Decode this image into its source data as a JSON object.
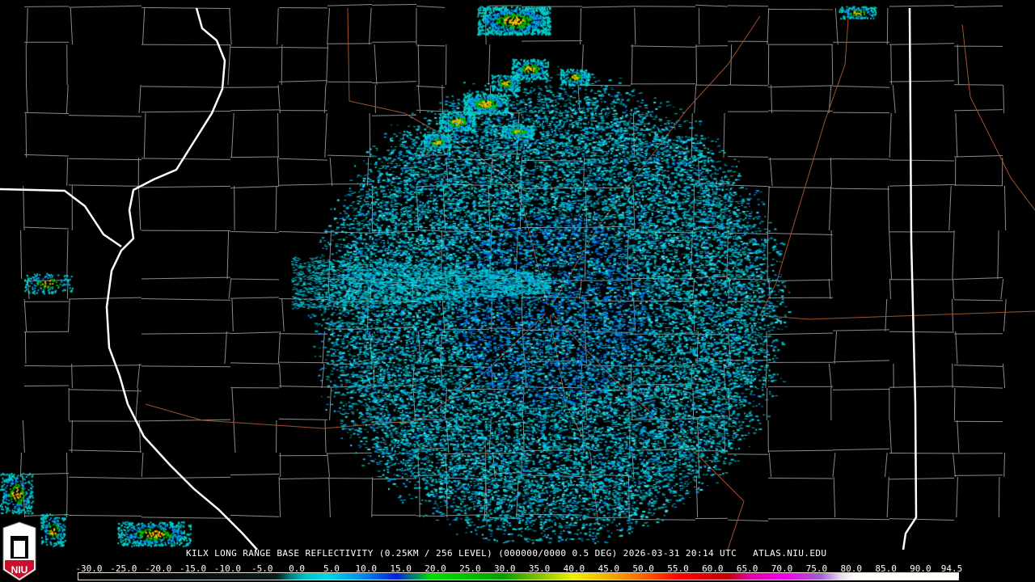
{
  "product": {
    "station": "KILX",
    "title": "LONG RANGE BASE REFLECTIVITY",
    "resolution": "(0.25KM / 256 LEVEL)",
    "scan": "(000000/0000 0.5 DEG)",
    "date": "2026-03-31",
    "time": "20:14 UTC",
    "source": "ATLAS.NIU.EDU"
  },
  "logo": {
    "text": "NIU",
    "colors": {
      "red": "#c8102e",
      "white": "#ffffff"
    }
  },
  "legend": {
    "unit_labels": [
      "-30.0",
      "-25.0",
      "-20.0",
      "-15.0",
      "-10.0",
      "-5.0",
      "0.0",
      "5.0",
      "10.0",
      "15.0",
      "20.0",
      "25.0",
      "30.0",
      "35.0",
      "40.0",
      "45.0",
      "50.0",
      "55.0",
      "60.0",
      "65.0",
      "70.0",
      "75.0",
      "80.0",
      "85.0",
      "90.0",
      "94.5"
    ],
    "range": [
      -30,
      94.5
    ],
    "color_stops": [
      {
        "value": -30,
        "color": "#000000"
      },
      {
        "value": -2,
        "color": "#0a1a1a"
      },
      {
        "value": 0,
        "color": "#008080"
      },
      {
        "value": 2,
        "color": "#00c0c0"
      },
      {
        "value": 5,
        "color": "#00d8e8"
      },
      {
        "value": 10,
        "color": "#0090f0"
      },
      {
        "value": 15,
        "color": "#0020e0"
      },
      {
        "value": 17,
        "color": "#007080"
      },
      {
        "value": 20,
        "color": "#00e000"
      },
      {
        "value": 30,
        "color": "#00a000"
      },
      {
        "value": 35,
        "color": "#80c000"
      },
      {
        "value": 40,
        "color": "#f0f000"
      },
      {
        "value": 45,
        "color": "#f0b000"
      },
      {
        "value": 50,
        "color": "#ff6000"
      },
      {
        "value": 55,
        "color": "#ff0000"
      },
      {
        "value": 62,
        "color": "#c00000"
      },
      {
        "value": 65,
        "color": "#e000a0"
      },
      {
        "value": 70,
        "color": "#f000f0"
      },
      {
        "value": 75,
        "color": "#a060d0"
      },
      {
        "value": 78,
        "color": "#e8e0f0"
      },
      {
        "value": 80,
        "color": "#ffffff"
      },
      {
        "value": 94.5,
        "color": "#ffffff"
      }
    ]
  },
  "map_colors": {
    "county": "#8a8a8a",
    "state": "#ffffff",
    "road": "#a0522d"
  }
}
